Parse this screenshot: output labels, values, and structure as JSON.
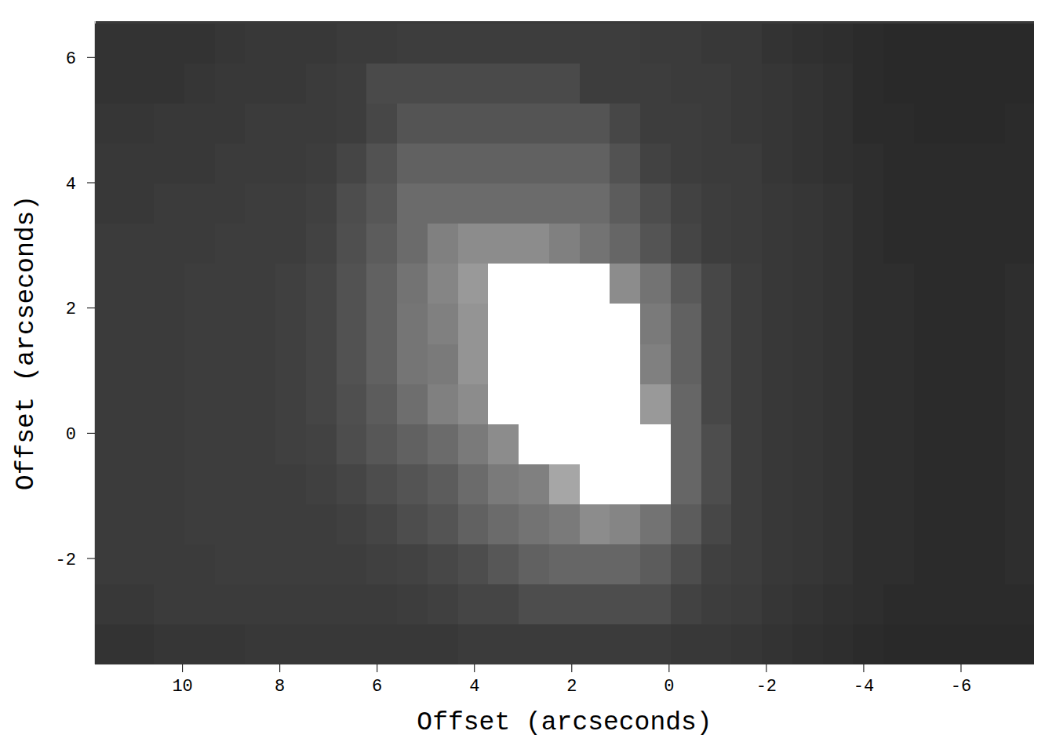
{
  "chart_data": {
    "type": "heatmap",
    "x_label": "Offset (arcseconds)",
    "y_label": "Offset (arcseconds)",
    "xlim": [
      11.8,
      -7.5
    ],
    "ylim": [
      -3.69,
      6.58
    ],
    "xticks": [
      10,
      8,
      6,
      4,
      2,
      0,
      -2,
      -4,
      -6
    ],
    "yticks": [
      -2,
      0,
      2,
      4,
      6
    ],
    "zlim": [
      0,
      100
    ],
    "x": [
      11.52,
      10.9,
      10.27,
      9.65,
      9.02,
      8.4,
      7.77,
      7.15,
      6.52,
      5.9,
      5.27,
      4.65,
      4.02,
      3.4,
      2.77,
      2.15,
      1.52,
      0.9,
      0.27,
      -0.35,
      -0.98,
      -1.6,
      -2.23,
      -2.85,
      -3.48,
      -4.1,
      -4.73,
      -5.35,
      -5.98,
      -6.6,
      -7.23
    ],
    "y": [
      6.22,
      5.58,
      4.94,
      4.3,
      3.66,
      3.02,
      2.38,
      1.74,
      1.1,
      0.46,
      -0.18,
      -0.82,
      -1.46,
      -2.1,
      -2.74,
      -3.38
    ],
    "cells": [
      [
        20,
        20,
        20,
        20,
        21,
        22,
        22,
        22,
        23,
        23,
        24,
        24,
        24,
        24,
        24,
        24,
        24,
        24,
        23,
        23,
        22,
        22,
        20,
        19,
        18,
        17,
        16,
        16,
        16,
        16,
        16
      ],
      [
        20,
        20,
        20,
        21,
        22,
        22,
        22,
        23,
        24,
        29,
        29,
        29,
        29,
        29,
        29,
        29,
        24,
        24,
        24,
        23,
        23,
        22,
        21,
        20,
        19,
        17,
        16,
        16,
        16,
        16,
        16
      ],
      [
        21,
        21,
        22,
        22,
        22,
        23,
        23,
        23,
        24,
        28,
        33,
        33,
        33,
        33,
        33,
        33,
        33,
        28,
        24,
        24,
        23,
        22,
        21,
        20,
        19,
        17,
        17,
        16,
        16,
        16,
        17
      ],
      [
        22,
        22,
        22,
        22,
        23,
        23,
        23,
        24,
        27,
        32,
        38,
        38,
        38,
        38,
        38,
        38,
        38,
        32,
        26,
        24,
        23,
        23,
        21,
        20,
        19,
        18,
        17,
        17,
        17,
        17,
        17
      ],
      [
        22,
        22,
        23,
        23,
        23,
        24,
        24,
        25,
        30,
        34,
        42,
        42,
        42,
        42,
        42,
        42,
        42,
        36,
        30,
        26,
        24,
        23,
        22,
        21,
        20,
        18,
        17,
        17,
        17,
        17,
        17
      ],
      [
        23,
        23,
        23,
        23,
        24,
        24,
        24,
        26,
        31,
        36,
        42,
        50,
        55,
        55,
        55,
        50,
        45,
        40,
        33,
        27,
        24,
        23,
        22,
        21,
        20,
        18,
        17,
        17,
        17,
        17,
        17
      ],
      [
        23,
        23,
        23,
        24,
        24,
        24,
        25,
        27,
        32,
        38,
        45,
        52,
        60,
        100,
        100,
        100,
        100,
        55,
        45,
        35,
        28,
        24,
        22,
        21,
        20,
        18,
        18,
        17,
        17,
        17,
        18
      ],
      [
        23,
        23,
        23,
        24,
        24,
        24,
        25,
        27,
        32,
        38,
        46,
        50,
        58,
        100,
        100,
        100,
        100,
        100,
        48,
        38,
        28,
        24,
        22,
        21,
        20,
        18,
        18,
        17,
        17,
        17,
        18
      ],
      [
        23,
        23,
        23,
        24,
        24,
        24,
        25,
        27,
        32,
        38,
        46,
        48,
        58,
        100,
        100,
        100,
        100,
        100,
        50,
        38,
        28,
        24,
        22,
        21,
        20,
        18,
        18,
        17,
        17,
        17,
        18
      ],
      [
        23,
        23,
        23,
        24,
        24,
        24,
        25,
        27,
        31,
        36,
        43,
        50,
        55,
        100,
        100,
        100,
        100,
        100,
        60,
        40,
        28,
        24,
        22,
        21,
        20,
        18,
        18,
        17,
        17,
        17,
        18
      ],
      [
        23,
        23,
        23,
        24,
        24,
        24,
        25,
        26,
        30,
        34,
        38,
        42,
        48,
        55,
        100,
        100,
        100,
        100,
        100,
        40,
        30,
        24,
        22,
        21,
        20,
        18,
        18,
        17,
        17,
        17,
        18
      ],
      [
        23,
        23,
        23,
        24,
        24,
        24,
        24,
        25,
        27,
        30,
        33,
        36,
        42,
        48,
        50,
        65,
        100,
        100,
        100,
        40,
        30,
        24,
        22,
        21,
        20,
        18,
        18,
        17,
        17,
        17,
        18
      ],
      [
        23,
        23,
        23,
        24,
        24,
        24,
        24,
        24,
        25,
        27,
        30,
        33,
        38,
        42,
        45,
        48,
        55,
        52,
        45,
        36,
        28,
        24,
        22,
        21,
        20,
        18,
        18,
        17,
        17,
        17,
        18
      ],
      [
        23,
        23,
        23,
        23,
        24,
        24,
        24,
        24,
        24,
        25,
        26,
        28,
        30,
        34,
        38,
        40,
        40,
        40,
        36,
        30,
        25,
        24,
        22,
        21,
        20,
        18,
        18,
        17,
        17,
        17,
        18
      ],
      [
        22,
        22,
        23,
        23,
        23,
        23,
        23,
        23,
        23,
        23,
        24,
        25,
        27,
        27,
        30,
        30,
        30,
        30,
        30,
        26,
        24,
        23,
        21,
        20,
        19,
        18,
        17,
        17,
        17,
        17,
        17
      ],
      [
        20,
        20,
        21,
        21,
        21,
        22,
        22,
        22,
        22,
        22,
        22,
        22,
        23,
        23,
        23,
        23,
        23,
        23,
        23,
        22,
        22,
        21,
        20,
        19,
        18,
        17,
        16,
        16,
        16,
        16,
        16
      ]
    ]
  }
}
